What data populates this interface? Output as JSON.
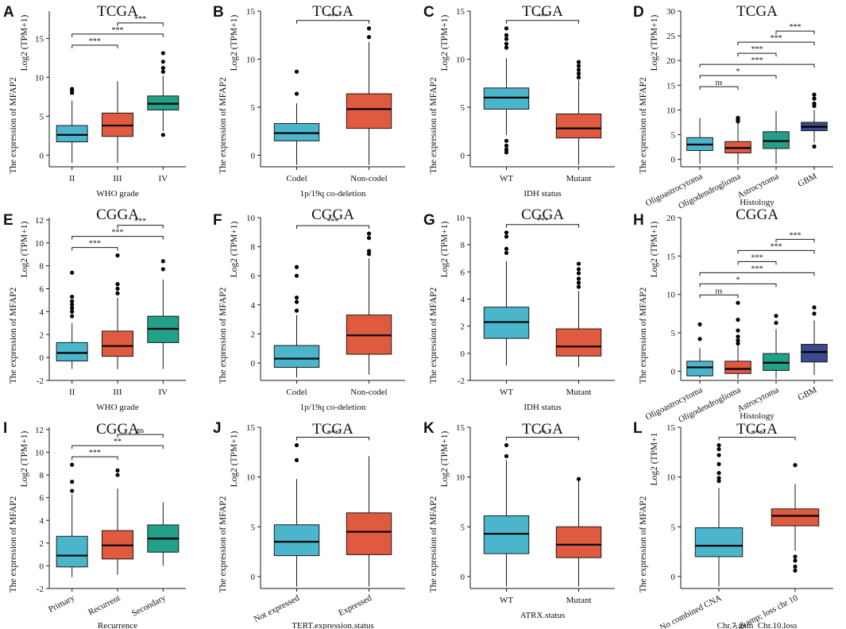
{
  "figure": {
    "ylabel_prefix": "The expression of MFAP2",
    "colors": {
      "cyan": "#4bb5cc",
      "red": "#e05a3f",
      "teal": "#22a088",
      "navy": "#3a4a8a",
      "stroke": "#1a1a1a"
    }
  },
  "chart_data": [
    {
      "label": "A",
      "title": "TCGA",
      "type": "box",
      "xlabel": "WHO grade",
      "ylabel": "Log2 (TPM+1)",
      "ylim": [
        -1.5,
        18.5
      ],
      "yticks": [
        0,
        5,
        10,
        15
      ],
      "ytick_labels": [
        "0",
        "5",
        "10",
        "15"
      ],
      "categories": [
        "II",
        "III",
        "IV"
      ],
      "colors": [
        "cyan",
        "red",
        "teal"
      ],
      "xrot": 0,
      "boxes": [
        {
          "min": -1.0,
          "q1": 1.7,
          "med": 2.6,
          "q3": 3.8,
          "max": 7.0,
          "out": [
            8.0,
            8.3,
            8.5
          ]
        },
        {
          "min": -1.0,
          "q1": 2.4,
          "med": 3.8,
          "q3": 5.4,
          "max": 9.5,
          "out": []
        },
        {
          "min": 3.1,
          "q1": 5.8,
          "med": 6.6,
          "q3": 7.6,
          "max": 10.2,
          "out": [
            2.6,
            10.7,
            11.2,
            12.0,
            13.1
          ]
        }
      ],
      "sigs": [
        {
          "from": 0,
          "to": 1,
          "level": 1,
          "text": "***"
        },
        {
          "from": 0,
          "to": 2,
          "level": 2,
          "text": "***"
        },
        {
          "from": 1,
          "to": 2,
          "level": 3,
          "text": "***"
        }
      ]
    },
    {
      "label": "B",
      "title": "TCGA",
      "type": "box",
      "xlabel": "1p/19q co-deletion",
      "ylabel": "Log2 (TPM+1)",
      "ylim": [
        -1.2,
        15.0
      ],
      "yticks": [
        0,
        5,
        10,
        15
      ],
      "ytick_labels": [
        "0",
        "5",
        "10",
        "15"
      ],
      "categories": [
        "Codel",
        "Non-codel"
      ],
      "colors": [
        "cyan",
        "red"
      ],
      "xrot": 0,
      "boxes": [
        {
          "min": -1.0,
          "q1": 1.5,
          "med": 2.3,
          "q3": 3.3,
          "max": 5.4,
          "out": [
            6.4,
            8.7
          ]
        },
        {
          "min": -1.0,
          "q1": 2.8,
          "med": 4.8,
          "q3": 6.4,
          "max": 11.8,
          "out": [
            12.3,
            13.2
          ]
        }
      ],
      "sigs": [
        {
          "from": 0,
          "to": 1,
          "level": 1,
          "text": "***"
        }
      ]
    },
    {
      "label": "C",
      "title": "TCGA",
      "type": "box",
      "xlabel": "IDH status",
      "ylabel": "Log2 (TPM+1)",
      "ylim": [
        -1.2,
        15.0
      ],
      "yticks": [
        0,
        5,
        10,
        15
      ],
      "ytick_labels": [
        "0",
        "5",
        "10",
        "15"
      ],
      "categories": [
        "WT",
        "Mutant"
      ],
      "colors": [
        "cyan",
        "red"
      ],
      "xrot": 0,
      "boxes": [
        {
          "min": 2.1,
          "q1": 4.8,
          "med": 6.0,
          "q3": 7.0,
          "max": 10.1,
          "out": [
            0.3,
            0.6,
            1.0,
            1.5,
            11.2,
            11.6,
            12.1,
            12.5,
            13.2
          ]
        },
        {
          "min": -1.0,
          "q1": 1.8,
          "med": 2.8,
          "q3": 4.3,
          "max": 7.8,
          "out": [
            8.1,
            8.5,
            8.9,
            9.3,
            9.7
          ]
        }
      ],
      "sigs": [
        {
          "from": 0,
          "to": 1,
          "level": 1,
          "text": "***"
        }
      ]
    },
    {
      "label": "D",
      "title": "TCGA",
      "type": "box",
      "xlabel": "Histology",
      "ylabel": "Log2 (TPM+1)",
      "ylim": [
        -1.5,
        30.0
      ],
      "yticks": [
        0,
        5,
        10,
        15,
        20,
        25,
        30
      ],
      "ytick_labels": [
        "0",
        "5",
        "10",
        "15",
        "20",
        "25",
        "30"
      ],
      "categories": [
        "Oligoastrocytoma",
        "Oligodendroglioma",
        "Astrocytoma",
        "GBM"
      ],
      "colors": [
        "cyan",
        "red",
        "teal",
        "navy"
      ],
      "xrot": -27,
      "boxes": [
        {
          "min": -0.9,
          "q1": 1.8,
          "med": 3.0,
          "q3": 4.4,
          "max": 8.4,
          "out": []
        },
        {
          "min": -1.0,
          "q1": 1.3,
          "med": 2.3,
          "q3": 3.6,
          "max": 7.3,
          "out": [
            7.7,
            8.0,
            8.4
          ]
        },
        {
          "min": -0.9,
          "q1": 2.2,
          "med": 3.7,
          "q3": 5.6,
          "max": 9.8,
          "out": []
        },
        {
          "min": 3.4,
          "q1": 5.8,
          "med": 6.6,
          "q3": 7.5,
          "max": 10.0,
          "out": [
            2.6,
            10.8,
            11.3,
            12.3,
            13.1
          ]
        }
      ],
      "sigs": [
        {
          "from": 0,
          "to": 1,
          "level": 1,
          "text": "ns"
        },
        {
          "from": 0,
          "to": 2,
          "level": 2,
          "text": "*"
        },
        {
          "from": 0,
          "to": 3,
          "level": 3,
          "text": "***"
        },
        {
          "from": 1,
          "to": 2,
          "level": 4,
          "text": "***"
        },
        {
          "from": 1,
          "to": 3,
          "level": 5,
          "text": "***"
        },
        {
          "from": 2,
          "to": 3,
          "level": 6,
          "text": "***"
        }
      ]
    },
    {
      "label": "E",
      "title": "CGGA",
      "type": "box",
      "xlabel": "WHO grade",
      "ylabel": "Log2 (TPM+1)",
      "ylim": [
        -2,
        12.2
      ],
      "yticks": [
        -2,
        0,
        2,
        4,
        6,
        8,
        10,
        12
      ],
      "ytick_labels": [
        "-2",
        "0",
        "2",
        "4",
        "6",
        "8",
        "10",
        "12"
      ],
      "categories": [
        "II",
        "III",
        "IV"
      ],
      "colors": [
        "cyan",
        "red",
        "teal"
      ],
      "xrot": 0,
      "boxes": [
        {
          "min": -1.0,
          "q1": -0.3,
          "med": 0.4,
          "q3": 1.3,
          "max": 3.0,
          "out": [
            3.6,
            4.0,
            4.3,
            4.6,
            4.9,
            5.3,
            7.4
          ]
        },
        {
          "min": -1.0,
          "q1": 0.1,
          "med": 1.0,
          "q3": 2.3,
          "max": 5.2,
          "out": [
            5.6,
            6.0,
            6.4,
            8.9
          ]
        },
        {
          "min": -1.0,
          "q1": 1.3,
          "med": 2.5,
          "q3": 3.6,
          "max": 6.8,
          "out": [
            7.7,
            8.4
          ]
        }
      ],
      "sigs": [
        {
          "from": 0,
          "to": 1,
          "level": 1,
          "text": "***"
        },
        {
          "from": 0,
          "to": 2,
          "level": 2,
          "text": "***"
        },
        {
          "from": 1,
          "to": 2,
          "level": 3,
          "text": "***"
        }
      ]
    },
    {
      "label": "F",
      "title": "CGGA",
      "type": "box",
      "xlabel": "1p/19q co-deletion",
      "ylabel": "Log2 (TPM+1)",
      "ylim": [
        -1.2,
        10.0
      ],
      "yticks": [
        0,
        2,
        4,
        6,
        8,
        10
      ],
      "ytick_labels": [
        "0",
        "2",
        "4",
        "6",
        "8",
        "10"
      ],
      "categories": [
        "Codel",
        "Non-codel"
      ],
      "colors": [
        "cyan",
        "red"
      ],
      "xrot": 0,
      "boxes": [
        {
          "min": -1.0,
          "q1": -0.3,
          "med": 0.3,
          "q3": 1.2,
          "max": 3.3,
          "out": [
            3.6,
            4.2,
            4.5,
            6.0,
            6.6
          ]
        },
        {
          "min": -0.8,
          "q1": 0.6,
          "med": 1.9,
          "q3": 3.3,
          "max": 7.2,
          "out": [
            7.5,
            7.7,
            8.6,
            8.9
          ]
        }
      ],
      "sigs": [
        {
          "from": 0,
          "to": 1,
          "level": 1,
          "text": "***"
        }
      ]
    },
    {
      "label": "G",
      "title": "CGGA",
      "type": "box",
      "xlabel": "IDH status",
      "ylabel": "Log2 (TPM+1)",
      "ylim": [
        -2,
        10
      ],
      "yticks": [
        -2,
        0,
        2,
        4,
        6,
        8,
        10
      ],
      "ytick_labels": [
        "-2",
        "0",
        "2",
        "4",
        "6",
        "8",
        "10"
      ],
      "categories": [
        "WT",
        "Mutant"
      ],
      "colors": [
        "cyan",
        "red"
      ],
      "xrot": 0,
      "boxes": [
        {
          "min": -0.9,
          "q1": 1.1,
          "med": 2.3,
          "q3": 3.4,
          "max": 6.8,
          "out": [
            7.4,
            7.7,
            8.6,
            8.9
          ]
        },
        {
          "min": -1.0,
          "q1": -0.2,
          "med": 0.5,
          "q3": 1.8,
          "max": 4.6,
          "out": [
            4.9,
            5.2,
            5.5,
            5.9,
            6.2,
            6.6
          ]
        }
      ],
      "sigs": [
        {
          "from": 0,
          "to": 1,
          "level": 1,
          "text": "***"
        }
      ]
    },
    {
      "label": "H",
      "title": "CGGA",
      "type": "box",
      "xlabel": "Histology",
      "ylabel": "Log2 (TPM+1)",
      "ylim": [
        -1.2,
        20.0
      ],
      "yticks": [
        0,
        5,
        10,
        15,
        20
      ],
      "ytick_labels": [
        "0",
        "5",
        "10",
        "15",
        "20"
      ],
      "categories": [
        "Oligoastrocytoma",
        "Oligodendroglioma",
        "Astrocytoma",
        "GBM"
      ],
      "colors": [
        "cyan",
        "red",
        "teal",
        "navy"
      ],
      "xrot": -27,
      "boxes": [
        {
          "min": -0.9,
          "q1": -0.6,
          "med": 0.5,
          "q3": 1.3,
          "max": 3.0,
          "out": [
            4.2,
            6.1
          ]
        },
        {
          "min": -1.0,
          "q1": -0.3,
          "med": 0.3,
          "q3": 1.3,
          "max": 3.3,
          "out": [
            3.6,
            4.0,
            4.5,
            5.3,
            6.7,
            8.9
          ]
        },
        {
          "min": -1.0,
          "q1": 0.1,
          "med": 1.1,
          "q3": 2.3,
          "max": 5.5,
          "out": [
            6.3,
            7.2
          ]
        },
        {
          "min": -0.5,
          "q1": 1.2,
          "med": 2.5,
          "q3": 3.5,
          "max": 6.6,
          "out": [
            7.5,
            8.3
          ]
        }
      ],
      "sigs": [
        {
          "from": 0,
          "to": 1,
          "level": 1,
          "text": "ns"
        },
        {
          "from": 0,
          "to": 2,
          "level": 2,
          "text": "*"
        },
        {
          "from": 0,
          "to": 3,
          "level": 3,
          "text": "***"
        },
        {
          "from": 1,
          "to": 2,
          "level": 4,
          "text": "***"
        },
        {
          "from": 1,
          "to": 3,
          "level": 5,
          "text": "***"
        },
        {
          "from": 2,
          "to": 3,
          "level": 6,
          "text": "***"
        }
      ]
    },
    {
      "label": "I",
      "title": "CGGA",
      "type": "box",
      "xlabel": "Recurrence",
      "ylabel": "Log2 (TPM+1)",
      "ylim": [
        -2,
        12.2
      ],
      "yticks": [
        -2,
        0,
        2,
        4,
        6,
        8,
        10,
        12
      ],
      "ytick_labels": [
        "-2",
        "0",
        "2",
        "4",
        "6",
        "8",
        "10",
        "12"
      ],
      "categories": [
        "Primary",
        "Recurrent",
        "Secondary"
      ],
      "colors": [
        "cyan",
        "red",
        "teal"
      ],
      "xrot": -27,
      "boxes": [
        {
          "min": -1.0,
          "q1": -0.1,
          "med": 0.9,
          "q3": 2.6,
          "max": 6.3,
          "out": [
            6.6,
            7.4,
            8.9
          ]
        },
        {
          "min": -0.8,
          "q1": 0.6,
          "med": 1.8,
          "q3": 3.1,
          "max": 6.8,
          "out": [
            8.0,
            8.4
          ]
        },
        {
          "min": 0.0,
          "q1": 1.2,
          "med": 2.4,
          "q3": 3.6,
          "max": 5.6,
          "out": []
        }
      ],
      "sigs": [
        {
          "from": 0,
          "to": 1,
          "level": 1,
          "text": "***"
        },
        {
          "from": 0,
          "to": 2,
          "level": 2,
          "text": "**"
        },
        {
          "from": 1,
          "to": 2,
          "level": 3,
          "text": "ns"
        }
      ]
    },
    {
      "label": "J",
      "title": "TCGA",
      "type": "box",
      "xlabel": "TERT.expression.status",
      "ylabel": "Log2 (TPM+1)",
      "ylim": [
        -1.2,
        15.0
      ],
      "yticks": [
        0,
        5,
        10,
        15
      ],
      "ytick_labels": [
        "0",
        "5",
        "10",
        "15"
      ],
      "categories": [
        "Not expressed",
        "Expressed"
      ],
      "colors": [
        "cyan",
        "red"
      ],
      "xrot": -27,
      "boxes": [
        {
          "min": -1.0,
          "q1": 2.1,
          "med": 3.5,
          "q3": 5.2,
          "max": 9.8,
          "out": [
            11.7,
            13.2
          ]
        },
        {
          "min": -1.0,
          "q1": 2.2,
          "med": 4.5,
          "q3": 6.4,
          "max": 12.1,
          "out": []
        }
      ],
      "sigs": [
        {
          "from": 0,
          "to": 1,
          "level": 1,
          "text": "***"
        }
      ]
    },
    {
      "label": "K",
      "title": "TCGA",
      "type": "box",
      "xlabel": "ATRX.status",
      "ylabel": "Log2 (TPM+1)",
      "ylim": [
        -1.2,
        15.0
      ],
      "yticks": [
        0,
        5,
        10,
        15
      ],
      "ytick_labels": [
        "0",
        "5",
        "10",
        "15"
      ],
      "categories": [
        "WT",
        "Mutant"
      ],
      "colors": [
        "cyan",
        "red"
      ],
      "xrot": 0,
      "boxes": [
        {
          "min": -1.0,
          "q1": 2.3,
          "med": 4.3,
          "q3": 6.1,
          "max": 11.7,
          "out": [
            12.1,
            13.2
          ]
        },
        {
          "min": -1.0,
          "q1": 1.9,
          "med": 3.2,
          "q3": 5.0,
          "max": 9.7,
          "out": [
            9.8
          ]
        }
      ],
      "sigs": [
        {
          "from": 0,
          "to": 1,
          "level": 1,
          "text": "**"
        }
      ]
    },
    {
      "label": "L",
      "title": "TCGA",
      "type": "box",
      "xlabel": "Chr.7.gain_Chr.10.loss",
      "ylabel": "Log2 (TPM+1",
      "ylim": [
        -1.2,
        15.0
      ],
      "yticks": [
        0,
        5,
        10,
        15
      ],
      "ytick_labels": [
        "0",
        "5",
        "10",
        "15"
      ],
      "categories": [
        "No combined CNA",
        "Gain chr 7 &amp; loss chr 10"
      ],
      "colors": [
        "cyan",
        "red"
      ],
      "xrot": -27,
      "boxes": [
        {
          "min": -1.0,
          "q1": 2.0,
          "med": 3.1,
          "q3": 4.9,
          "max": 8.9,
          "out": [
            9.6,
            9.9,
            10.4,
            11.3,
            12.2,
            12.8,
            13.2
          ]
        },
        {
          "min": 2.6,
          "q1": 5.1,
          "med": 6.1,
          "q3": 6.8,
          "max": 9.3,
          "out": [
            0.6,
            1.0,
            1.6,
            2.0,
            11.2
          ]
        }
      ],
      "sigs": [
        {
          "from": 0,
          "to": 1,
          "level": 1,
          "text": "***"
        }
      ]
    }
  ]
}
